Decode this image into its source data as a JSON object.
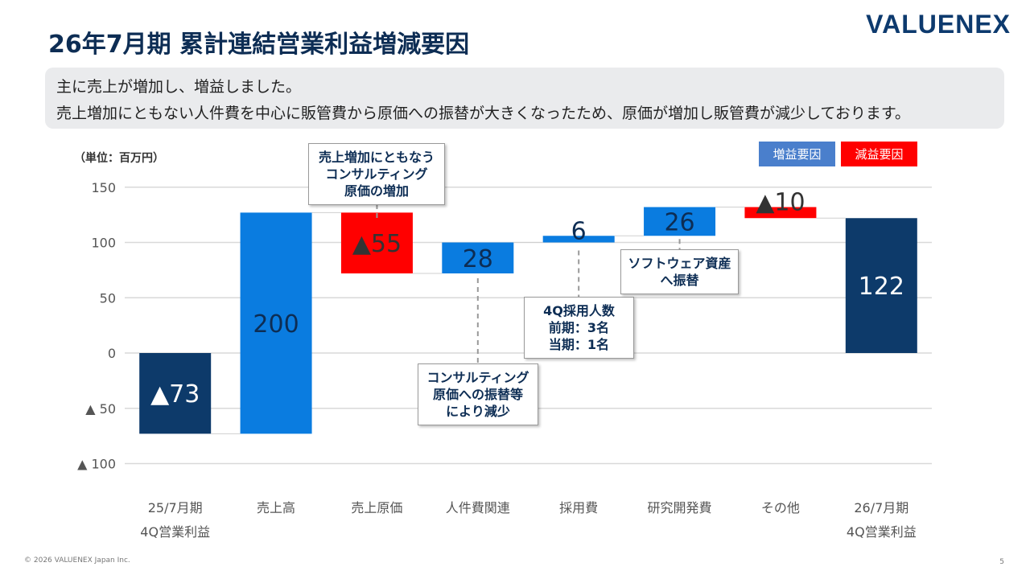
{
  "header": {
    "title": "26年7月期 累計連結営業利益増減要因",
    "logo": "VALUENEX"
  },
  "summary": {
    "line1": "主に売上が増加し、増益しました。",
    "line2": "売上増加にともない人件費を中心に販管費から原価への振替が大きくなったため、原価が増加し販管費が減少しております。"
  },
  "unit_label": "（単位：百万円）",
  "legend": [
    {
      "label": "増益要因",
      "color": "#4a7fcc"
    },
    {
      "label": "減益要因",
      "color": "#ff0000"
    }
  ],
  "callouts": [
    {
      "lines": [
        "売上増加にともなう",
        "コンサルティング",
        "原価の増加"
      ]
    },
    {
      "lines": [
        "コンサルティング",
        "原価への振替等",
        "により減少"
      ]
    },
    {
      "lines": [
        "4Q採用人数",
        "前期：3名",
        "当期：1名"
      ]
    },
    {
      "lines": [
        "ソフトウェア資産",
        "へ振替"
      ]
    }
  ],
  "footer": "© 2026 VALUENEX Japan Inc.",
  "page_number": "5",
  "colors": {
    "total": "#0d3a6a",
    "increase": "#0a7ce0",
    "decrease": "#ff0000",
    "grid": "#d9d9d9"
  },
  "chart_data": {
    "type": "waterfall",
    "categories": [
      [
        "25/7月期",
        "4Q営業利益"
      ],
      [
        "売上高"
      ],
      [
        "売上原価"
      ],
      [
        "人件費関連"
      ],
      [
        "採用費"
      ],
      [
        "研究開発費"
      ],
      [
        "その他"
      ],
      [
        "26/7月期",
        "4Q営業利益"
      ]
    ],
    "steps": [
      {
        "kind": "total",
        "value": -73,
        "label": "▲73"
      },
      {
        "kind": "increase",
        "value": 200,
        "label": "200"
      },
      {
        "kind": "decrease",
        "value": -55,
        "label": "▲55"
      },
      {
        "kind": "increase",
        "value": 28,
        "label": "28"
      },
      {
        "kind": "increase",
        "value": 6,
        "label": "6"
      },
      {
        "kind": "increase",
        "value": 26,
        "label": "26"
      },
      {
        "kind": "decrease",
        "value": -10,
        "label": "▲10"
      },
      {
        "kind": "total",
        "value": 122,
        "label": "122"
      }
    ],
    "y_ticks": [
      150,
      100,
      50,
      0,
      -50,
      -100
    ],
    "y_tick_labels": [
      "150",
      "100",
      "50",
      "0",
      "▲ 50",
      "▲ 100"
    ],
    "ylim": [
      -120,
      150
    ],
    "grid": true
  }
}
